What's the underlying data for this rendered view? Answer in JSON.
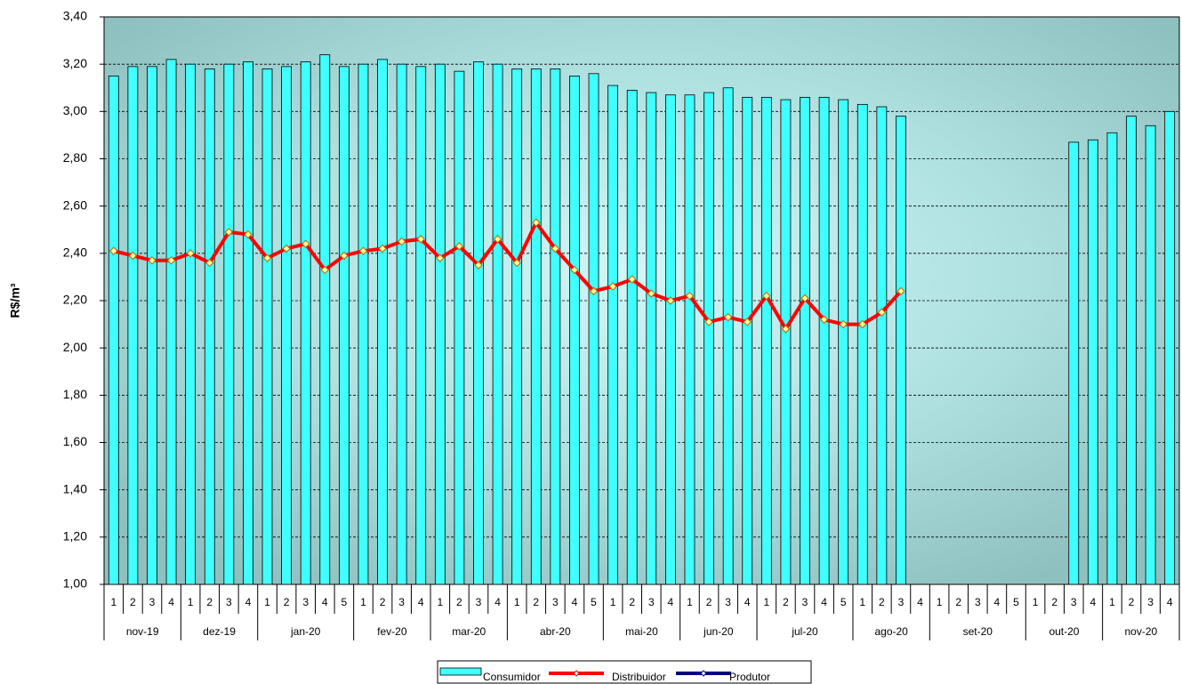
{
  "chart_data": {
    "type": "bar_line",
    "ylabel": "R$/m³",
    "months": [
      {
        "label": "nov-19",
        "weeks": [
          "1",
          "2",
          "3",
          "4"
        ]
      },
      {
        "label": "dez-19",
        "weeks": [
          "1",
          "2",
          "3",
          "4"
        ]
      },
      {
        "label": "jan-20",
        "weeks": [
          "1",
          "2",
          "3",
          "4",
          "5"
        ]
      },
      {
        "label": "fev-20",
        "weeks": [
          "1",
          "2",
          "3",
          "4"
        ]
      },
      {
        "label": "mar-20",
        "weeks": [
          "1",
          "2",
          "3",
          "4"
        ]
      },
      {
        "label": "abr-20",
        "weeks": [
          "1",
          "2",
          "3",
          "4",
          "5"
        ]
      },
      {
        "label": "mai-20",
        "weeks": [
          "1",
          "2",
          "3",
          "4"
        ]
      },
      {
        "label": "jun-20",
        "weeks": [
          "1",
          "2",
          "3",
          "4"
        ]
      },
      {
        "label": "jul-20",
        "weeks": [
          "1",
          "2",
          "3",
          "4",
          "5"
        ]
      },
      {
        "label": "ago-20",
        "weeks": [
          "1",
          "2",
          "3",
          "4"
        ]
      },
      {
        "label": "set-20",
        "weeks": [
          "1",
          "2",
          "3",
          "4",
          "5"
        ]
      },
      {
        "label": "out-20",
        "weeks": [
          "1",
          "2",
          "3",
          "4"
        ]
      },
      {
        "label": "nov-20",
        "weeks": [
          "1",
          "2",
          "3",
          "4"
        ]
      }
    ],
    "series": [
      {
        "name": "Consumidor",
        "kind": "bar",
        "color": "#40ffff",
        "values": [
          3.15,
          3.19,
          3.19,
          3.22,
          3.2,
          3.18,
          3.2,
          3.21,
          3.18,
          3.19,
          3.21,
          3.24,
          3.19,
          3.2,
          3.22,
          3.2,
          3.19,
          3.2,
          3.17,
          3.21,
          3.2,
          3.18,
          3.18,
          3.18,
          3.15,
          3.16,
          3.11,
          3.09,
          3.08,
          3.07,
          3.07,
          3.08,
          3.1,
          3.06,
          3.06,
          3.05,
          3.06,
          3.06,
          3.05,
          3.03,
          3.02,
          2.98,
          null,
          null,
          null,
          null,
          null,
          null,
          null,
          null,
          2.87,
          2.88,
          2.91,
          2.98,
          2.94,
          3.0
        ]
      },
      {
        "name": "Distribuidor",
        "kind": "line",
        "color": "#ff0000",
        "values": [
          2.41,
          2.39,
          2.37,
          2.37,
          2.4,
          2.36,
          2.49,
          2.48,
          2.38,
          2.42,
          2.44,
          2.33,
          2.39,
          2.41,
          2.42,
          2.45,
          2.46,
          2.38,
          2.43,
          2.35,
          2.46,
          2.36,
          2.53,
          2.42,
          2.33,
          2.24,
          2.26,
          2.29,
          2.23,
          2.2,
          2.22,
          2.11,
          2.13,
          2.11,
          2.22,
          2.08,
          2.21,
          2.12,
          2.1,
          2.1,
          2.15,
          2.24,
          null,
          null,
          null,
          null,
          null,
          null,
          null,
          null,
          null,
          null,
          null,
          null,
          null,
          null
        ]
      },
      {
        "name": "Produtor",
        "kind": "line",
        "color": "#000080",
        "values": [
          null,
          null,
          null,
          null,
          null,
          null,
          null,
          null,
          null,
          null,
          null,
          null,
          null,
          null,
          null,
          null,
          null,
          null,
          null,
          null,
          null,
          null,
          null,
          null,
          null,
          null,
          null,
          null,
          null,
          null,
          null,
          null,
          null,
          null,
          null,
          null,
          null,
          null,
          null,
          null,
          null,
          null,
          null,
          null,
          null,
          null,
          null,
          null,
          null,
          null,
          null,
          null,
          null,
          null,
          null,
          null
        ]
      }
    ],
    "ylim": [
      1.0,
      3.4
    ],
    "yticks": [
      {
        "value": 1.0,
        "label": "1,00"
      },
      {
        "value": 1.2,
        "label": "1,20"
      },
      {
        "value": 1.4,
        "label": "1,40"
      },
      {
        "value": 1.6,
        "label": "1,60"
      },
      {
        "value": 1.8,
        "label": "1,80"
      },
      {
        "value": 2.0,
        "label": "2,00"
      },
      {
        "value": 2.2,
        "label": "2,20"
      },
      {
        "value": 2.4,
        "label": "2,40"
      },
      {
        "value": 2.6,
        "label": "2,60"
      },
      {
        "value": 2.8,
        "label": "2,80"
      },
      {
        "value": 3.0,
        "label": "3,00"
      },
      {
        "value": 3.2,
        "label": "3,20"
      },
      {
        "value": 3.4,
        "label": "3,40"
      }
    ],
    "grid": true,
    "legend": "bottom"
  }
}
